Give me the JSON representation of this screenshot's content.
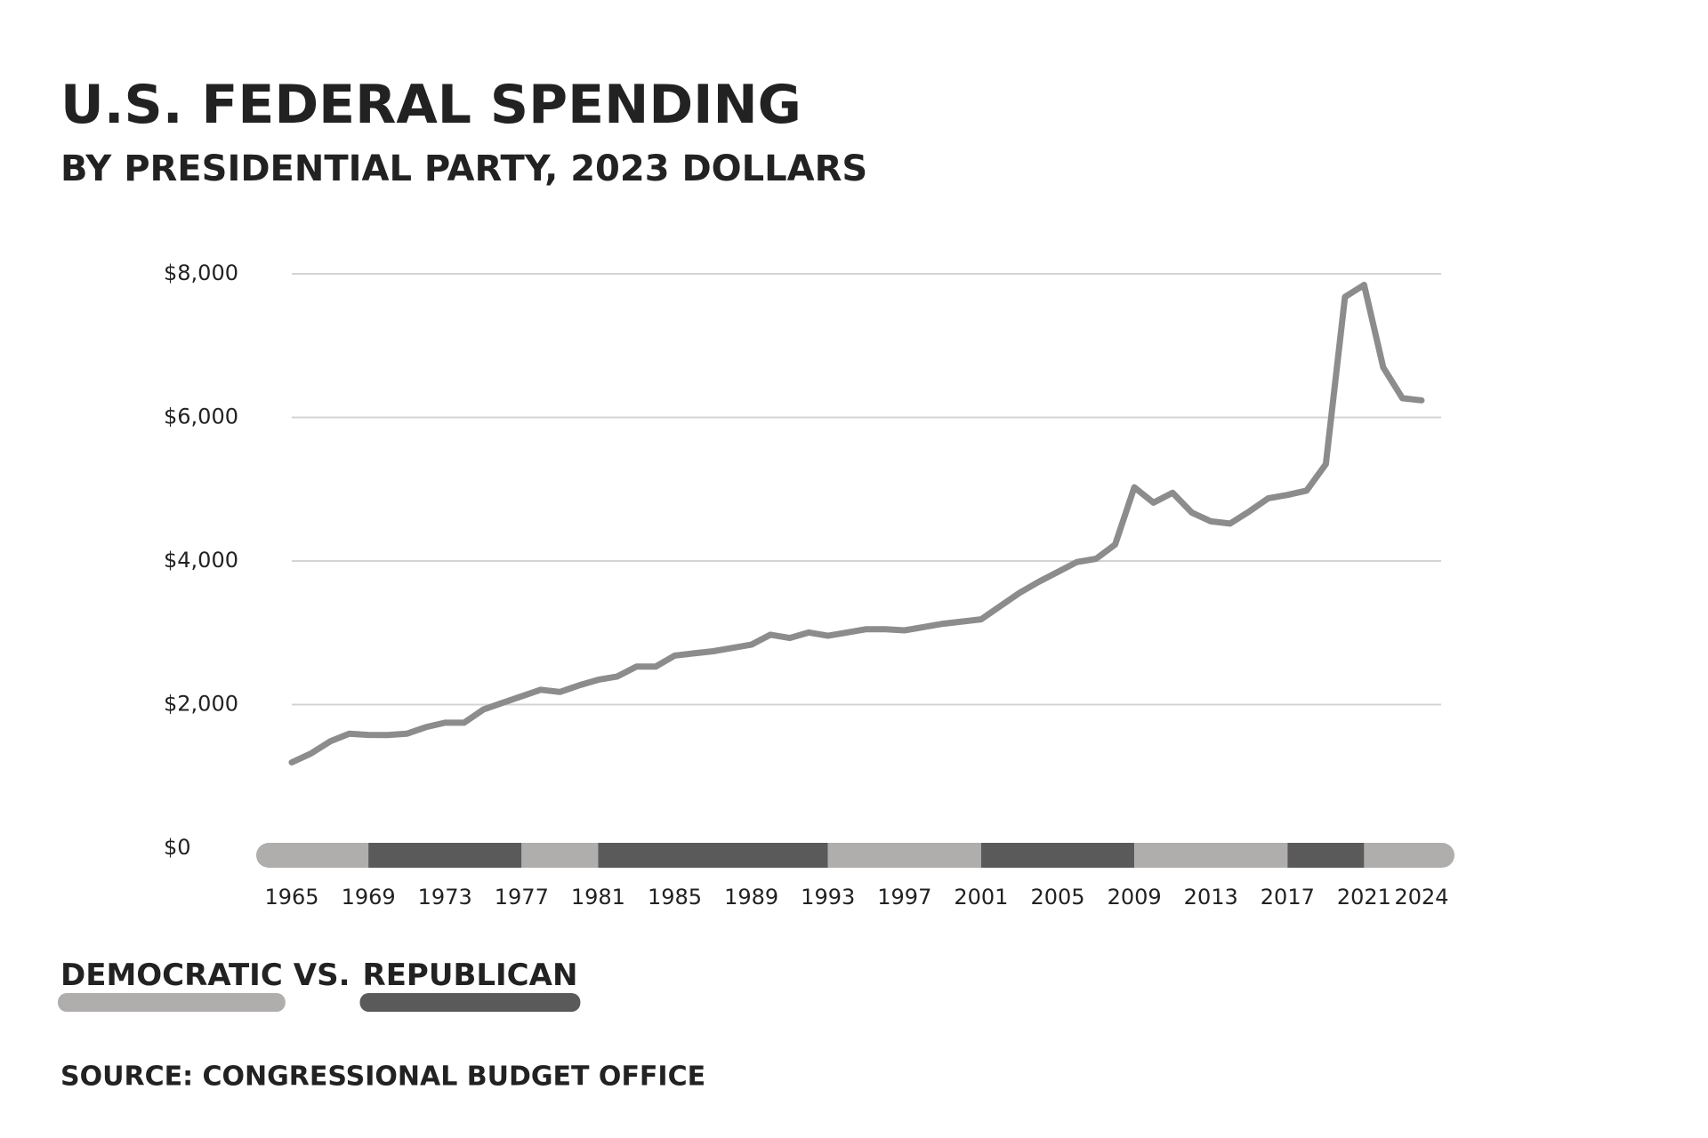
{
  "chart_data": {
    "type": "line",
    "title": "U.S. FEDERAL SPENDING",
    "subtitle": "BY PRESIDENTIAL PARTY, 2023 DOLLARS",
    "source": "SOURCE: CONGRESSIONAL BUDGET OFFICE",
    "x": [
      1965,
      1966,
      1967,
      1968,
      1969,
      1970,
      1971,
      1972,
      1973,
      1974,
      1975,
      1976,
      1977,
      1978,
      1979,
      1980,
      1981,
      1982,
      1983,
      1984,
      1985,
      1986,
      1987,
      1988,
      1989,
      1990,
      1991,
      1992,
      1993,
      1994,
      1995,
      1996,
      1997,
      1998,
      1999,
      2000,
      2001,
      2002,
      2003,
      2004,
      2005,
      2006,
      2007,
      2008,
      2009,
      2010,
      2011,
      2012,
      2013,
      2014,
      2015,
      2016,
      2017,
      2018,
      2019,
      2020,
      2021,
      2022,
      2023,
      2024
    ],
    "series": [
      {
        "name": "Federal spending",
        "color": "#8c8c8c",
        "values": [
          1195,
          1318,
          1487,
          1594,
          1578,
          1575,
          1594,
          1686,
          1747,
          1747,
          1931,
          2023,
          2115,
          2207,
          2176,
          2268,
          2345,
          2391,
          2529,
          2529,
          2682,
          2713,
          2743,
          2789,
          2835,
          2973,
          2927,
          3004,
          2958,
          3004,
          3050,
          3050,
          3034,
          3080,
          3126,
          3157,
          3188,
          3372,
          3556,
          3709,
          3847,
          3985,
          4031,
          4230,
          5027,
          4812,
          4950,
          4674,
          4552,
          4521,
          4690,
          4874,
          4920,
          4981,
          5349,
          7678,
          7847,
          6697,
          6268,
          6238
        ]
      }
    ],
    "xlim": [
      1965,
      2024
    ],
    "xticks": [
      1965,
      1969,
      1973,
      1977,
      1981,
      1985,
      1989,
      1993,
      1997,
      2001,
      2005,
      2009,
      2013,
      2017,
      2021,
      2024
    ],
    "ylim": [
      0,
      8000
    ],
    "yticks": [
      {
        "value": 0,
        "label": "$0"
      },
      {
        "value": 2000,
        "label": "$2,000"
      },
      {
        "value": 4000,
        "label": "$4,000"
      },
      {
        "value": 6000,
        "label": "$6,000"
      },
      {
        "value": 8000,
        "label": "$8,000"
      }
    ],
    "grid": true,
    "parties": [
      {
        "name": "DEMOCRATIC",
        "color": "#b0adad"
      },
      {
        "name": "REPUBLICAN",
        "color": "#5a5a5a"
      }
    ],
    "legend_separator": "VS.",
    "periods": [
      {
        "party": 0,
        "start": 1965,
        "end": 1969
      },
      {
        "party": 1,
        "start": 1969,
        "end": 1977
      },
      {
        "party": 0,
        "start": 1977,
        "end": 1981
      },
      {
        "party": 1,
        "start": 1981,
        "end": 1993
      },
      {
        "party": 0,
        "start": 1993,
        "end": 2001
      },
      {
        "party": 1,
        "start": 2001,
        "end": 2009
      },
      {
        "party": 0,
        "start": 2009,
        "end": 2017
      },
      {
        "party": 1,
        "start": 2017,
        "end": 2021
      },
      {
        "party": 0,
        "start": 2021,
        "end": 2024
      }
    ]
  }
}
